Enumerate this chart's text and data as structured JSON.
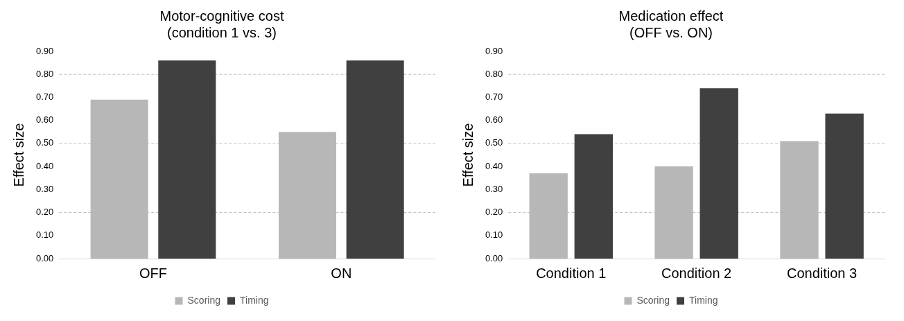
{
  "chart_data": [
    {
      "type": "bar",
      "title": [
        "Motor-cognitive cost",
        "(condition 1 vs. 3)"
      ],
      "ylabel": "Effect size",
      "categories": [
        "OFF",
        "ON"
      ],
      "series": [
        {
          "name": "Scoring",
          "color": "#b7b7b7",
          "values": [
            0.69,
            0.55
          ]
        },
        {
          "name": "Timing",
          "color": "#404040",
          "values": [
            0.86,
            0.86
          ]
        }
      ],
      "ylim": [
        0,
        0.9
      ],
      "yticks": [
        {
          "value": 0,
          "label": "0.00"
        },
        {
          "value": 0.1,
          "label": "0.10"
        },
        {
          "value": 0.2,
          "label": "0.20"
        },
        {
          "value": 0.3,
          "label": "0.30"
        },
        {
          "value": 0.4,
          "label": "0.40"
        },
        {
          "value": 0.5,
          "label": "0.50"
        },
        {
          "value": 0.6,
          "label": "0.60"
        },
        {
          "value": 0.7,
          "label": "0.70"
        },
        {
          "value": 0.8,
          "label": "0.80"
        },
        {
          "value": 0.9,
          "label": "0.90"
        }
      ],
      "ref_lines": [
        {
          "axis": "y",
          "value": 0.2,
          "color": "#bfbfbf",
          "line_style": "dashed"
        },
        {
          "axis": "y",
          "value": 0.5,
          "color": "#bfbfbf",
          "line_style": "dashed"
        },
        {
          "axis": "y",
          "value": 0.8,
          "color": "#bfbfbf",
          "line_style": "dashed"
        }
      ],
      "grid": false,
      "legend": "bottom"
    },
    {
      "type": "bar",
      "title": [
        "Medication effect",
        "(OFF vs. ON)"
      ],
      "ylabel": "Effect size",
      "categories": [
        "Condition 1",
        "Condition 2",
        "Condition 3"
      ],
      "series": [
        {
          "name": "Scoring",
          "color": "#b7b7b7",
          "values": [
            0.37,
            0.4,
            0.51
          ]
        },
        {
          "name": "Timing",
          "color": "#404040",
          "values": [
            0.54,
            0.74,
            0.63
          ]
        }
      ],
      "ylim": [
        0,
        0.9
      ],
      "yticks": [
        {
          "value": 0,
          "label": "0.00"
        },
        {
          "value": 0.1,
          "label": "0.10"
        },
        {
          "value": 0.2,
          "label": "0.20"
        },
        {
          "value": 0.3,
          "label": "0.30"
        },
        {
          "value": 0.4,
          "label": "0.40"
        },
        {
          "value": 0.5,
          "label": "0.50"
        },
        {
          "value": 0.6,
          "label": "0.60"
        },
        {
          "value": 0.7,
          "label": "0.70"
        },
        {
          "value": 0.8,
          "label": "0.80"
        },
        {
          "value": 0.9,
          "label": "0.90"
        }
      ],
      "ref_lines": [
        {
          "axis": "y",
          "value": 0.2,
          "color": "#bfbfbf",
          "line_style": "dashed"
        },
        {
          "axis": "y",
          "value": 0.5,
          "color": "#bfbfbf",
          "line_style": "dashed"
        },
        {
          "axis": "y",
          "value": 0.8,
          "color": "#bfbfbf",
          "line_style": "dashed"
        }
      ],
      "grid": false,
      "legend": "bottom"
    }
  ]
}
